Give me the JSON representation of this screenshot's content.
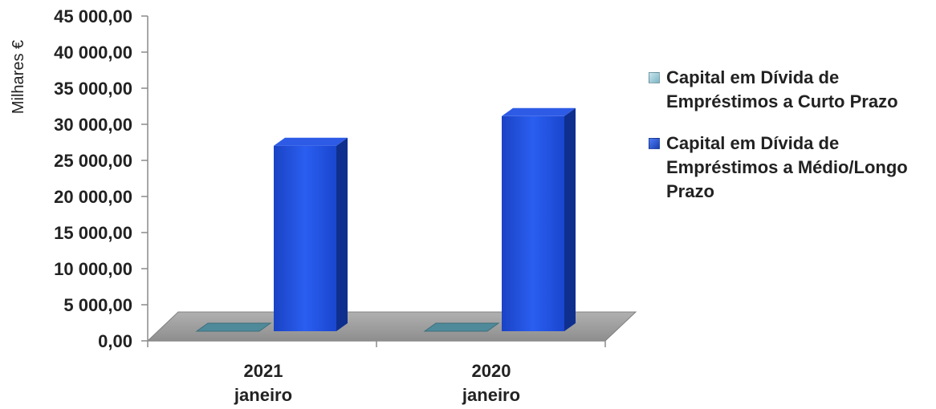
{
  "chart_data": {
    "type": "bar",
    "ylabel": "Milhares €",
    "ylim": [
      0,
      45000
    ],
    "yticks": [
      "0,00",
      "5 000,00",
      "10 000,00",
      "15 000,00",
      "20 000,00",
      "25 000,00",
      "30 000,00",
      "35 000,00",
      "40 000,00",
      "45 000,00"
    ],
    "ytick_values": [
      0,
      5000,
      10000,
      15000,
      20000,
      25000,
      30000,
      35000,
      40000,
      45000
    ],
    "categories": [
      {
        "line1": "2021",
        "line2": "janeiro"
      },
      {
        "line1": "2020",
        "line2": "janeiro"
      }
    ],
    "series": [
      {
        "name": "Capital em Dívida de Empréstimos a Curto Prazo",
        "color": "#7fb6c6",
        "values": [
          0,
          0
        ]
      },
      {
        "name": "Capital em Dívida de Empréstimos a Médio/Longo Prazo",
        "color": "#1f4fd8",
        "values": [
          25700,
          29800
        ]
      }
    ],
    "legend_position": "right",
    "grid": false
  },
  "legend": {
    "items": [
      {
        "line1": "Capital em Dívida de",
        "line2": "Empréstimos a Curto Prazo",
        "line3": ""
      },
      {
        "line1": "Capital em Dívida de",
        "line2": "Empréstimos a Médio/Longo",
        "line3": "Prazo"
      }
    ]
  }
}
